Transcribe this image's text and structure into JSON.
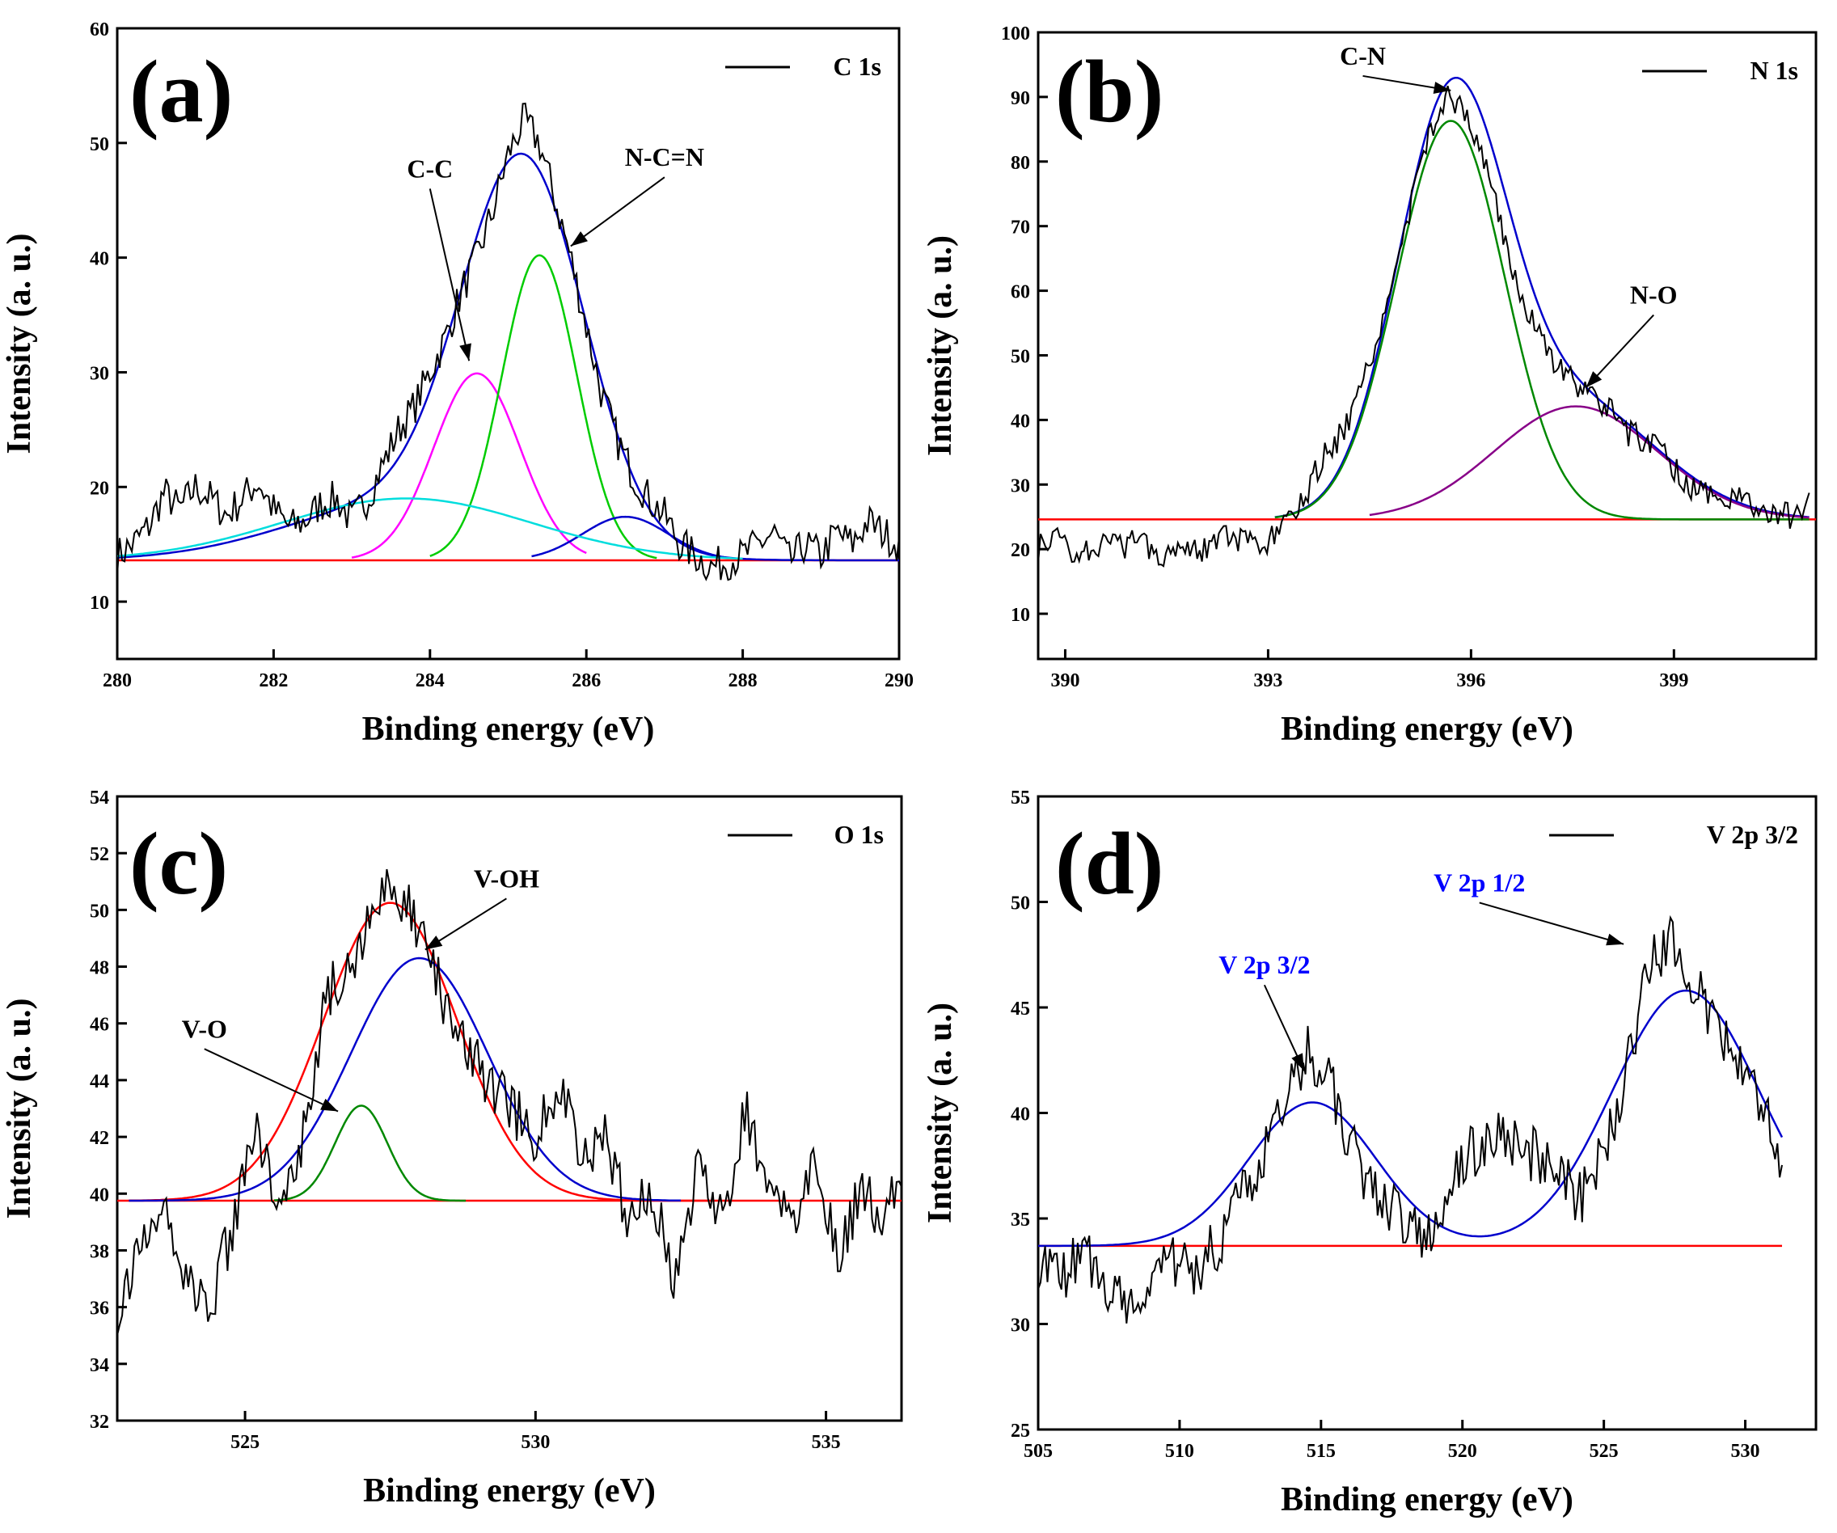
{
  "chart_data": [
    {
      "type": "line",
      "panel_label": "(a)",
      "xlabel": "Binding energy (eV)",
      "ylabel": "Intensity (a. u.)",
      "xlim": [
        280,
        290
      ],
      "ylim": [
        5,
        60
      ],
      "xticks": [
        280,
        282,
        284,
        286,
        288,
        290
      ],
      "yticks": [
        10,
        20,
        30,
        40,
        50,
        60
      ],
      "legend": {
        "label": "C 1s",
        "position": "top-right"
      },
      "baseline": 13.6,
      "raw": {
        "x": [
          280,
          280.2,
          280.4,
          280.6,
          280.8,
          281,
          281.2,
          281.4,
          281.6,
          281.8,
          282,
          282.2,
          282.4,
          282.6,
          282.8,
          283,
          283.2,
          283.4,
          283.6,
          283.8,
          284,
          284.2,
          284.4,
          284.6,
          284.8,
          285,
          285.2,
          285.4,
          285.6,
          285.8,
          286,
          286.2,
          286.4,
          286.6,
          286.8,
          287,
          287.2,
          287.4,
          287.6,
          287.8,
          288,
          288.2,
          288.4,
          288.6,
          288.8,
          289,
          289.2,
          289.4,
          289.6,
          289.8,
          290
        ],
        "y": [
          14,
          15,
          16.5,
          19.5,
          18,
          20,
          19,
          17.5,
          19,
          20.5,
          18,
          16.5,
          17,
          18.5,
          19,
          17,
          19,
          22,
          25,
          27,
          30,
          33,
          37,
          40,
          44,
          49,
          52,
          50,
          45,
          40,
          34,
          28,
          24,
          21,
          19,
          17.5,
          15,
          14,
          13,
          13.5,
          14,
          15,
          16,
          13.5,
          15,
          14,
          16,
          15,
          17,
          16,
          15
        ]
      },
      "fits": [
        {
          "name": "envelope",
          "color": "#0000cc",
          "type": "gauss_sum",
          "components": [
            [
              32.4,
              285.2,
              0.78
            ],
            [
              5,
              283.7,
              1.5
            ]
          ],
          "range": [
            280,
            290
          ]
        },
        {
          "name": "C-C",
          "color": "#ff00ff",
          "type": "gauss",
          "amp": 16.3,
          "center": 284.6,
          "sigma": 0.55,
          "range": [
            283,
            286
          ]
        },
        {
          "name": "N-C=N",
          "color": "#00cc00",
          "type": "gauss",
          "amp": 26.6,
          "center": 285.4,
          "sigma": 0.48,
          "range": [
            284,
            286.9
          ]
        },
        {
          "name": "high-energy",
          "color": "#0000cc",
          "type": "gauss",
          "amp": 3.8,
          "center": 286.5,
          "sigma": 0.55,
          "range": [
            285.3,
            287.8
          ]
        },
        {
          "name": "broad",
          "color": "#00dddd",
          "type": "gauss",
          "amp": 5.4,
          "center": 283.7,
          "sigma": 1.6,
          "range": [
            280,
            288
          ]
        }
      ],
      "annotations": [
        {
          "text": "C-C",
          "color": "#000000",
          "text_xy": [
            284.0,
            47
          ],
          "arrow_to": [
            284.5,
            31
          ]
        },
        {
          "text": "N-C=N",
          "color": "#000000",
          "text_xy": [
            287.0,
            48
          ],
          "arrow_to": [
            285.8,
            41
          ]
        }
      ]
    },
    {
      "type": "line",
      "panel_label": "(b)",
      "xlabel": "Binding energy (eV)",
      "ylabel": "Intensity (a. u.)",
      "xlim": [
        389.6,
        401.1
      ],
      "ylim": [
        3,
        100
      ],
      "xticks": [
        390,
        393,
        396,
        399
      ],
      "yticks": [
        10,
        20,
        30,
        40,
        50,
        60,
        70,
        80,
        90,
        100
      ],
      "legend": {
        "label": "N 1s",
        "position": "top-right"
      },
      "baseline": 24.6,
      "raw": {
        "x": [
          389.6,
          389.9,
          390.2,
          390.5,
          390.8,
          391.1,
          391.4,
          391.7,
          392,
          392.3,
          392.6,
          392.9,
          393.2,
          393.5,
          393.8,
          394.1,
          394.4,
          394.7,
          395,
          395.3,
          395.6,
          395.9,
          396.2,
          396.5,
          396.8,
          397.1,
          397.4,
          397.7,
          398,
          398.3,
          398.6,
          398.9,
          399.2,
          399.5,
          399.8,
          400.1,
          400.4,
          400.7,
          401
        ],
        "y": [
          20,
          22,
          19,
          21,
          20,
          22,
          19,
          21,
          20,
          22,
          21,
          20,
          23,
          27,
          34,
          38,
          45,
          56,
          68,
          82,
          90,
          88,
          80,
          68,
          57,
          51,
          47,
          44,
          42,
          38,
          37,
          34,
          30,
          29,
          28,
          27,
          26,
          25,
          27
        ]
      },
      "fits": [
        {
          "name": "envelope",
          "color": "#0000cc",
          "type": "gauss_sum",
          "components": [
            [
              61.7,
              395.7,
              0.8
            ],
            [
              18,
              397.5,
              1.25
            ]
          ],
          "range": [
            393.1,
            401
          ]
        },
        {
          "name": "C-N",
          "color": "#008800",
          "type": "gauss",
          "amp": 61.7,
          "center": 395.7,
          "sigma": 0.8,
          "range": [
            393.1,
            401
          ]
        },
        {
          "name": "N-O",
          "color": "#880088",
          "type": "gauss",
          "amp": 17.5,
          "center": 397.55,
          "sigma": 1.2,
          "range": [
            394.5,
            401
          ]
        }
      ],
      "annotations": [
        {
          "text": "C-N",
          "color": "#000000",
          "text_xy": [
            394.4,
            95
          ],
          "arrow_to": [
            395.7,
            91
          ]
        },
        {
          "text": "N-O",
          "color": "#000000",
          "text_xy": [
            398.7,
            58
          ],
          "arrow_to": [
            397.7,
            45
          ]
        }
      ]
    },
    {
      "type": "line",
      "panel_label": "(c)",
      "xlabel": "Binding energy (eV)",
      "ylabel": "Intensity (a. u.)",
      "xlim": [
        522.8,
        536.3
      ],
      "ylim": [
        32,
        54
      ],
      "xticks": [
        525,
        530,
        535
      ],
      "yticks": [
        32,
        34,
        36,
        38,
        40,
        42,
        44,
        46,
        48,
        50,
        52,
        54
      ],
      "legend": {
        "label": "O 1s",
        "position": "top-right"
      },
      "baseline": 39.75,
      "raw": {
        "x": [
          522.8,
          523.2,
          523.6,
          524,
          524.4,
          524.8,
          525.2,
          525.6,
          526,
          526.4,
          526.8,
          527.2,
          527.6,
          528,
          528.4,
          528.8,
          529.2,
          529.6,
          530,
          530.4,
          530.8,
          531.2,
          531.6,
          532,
          532.4,
          532.8,
          533.2,
          533.6,
          534,
          534.4,
          534.8,
          535.2,
          535.6,
          536,
          536.3
        ],
        "y": [
          36,
          38,
          39.5,
          37,
          36,
          39,
          42,
          40,
          42,
          47,
          48,
          50,
          51,
          49,
          47,
          45,
          44,
          43,
          42,
          44,
          41,
          42,
          39,
          40,
          37,
          41,
          39,
          43,
          40,
          39,
          41,
          38,
          40,
          39,
          41
        ]
      },
      "fits": [
        {
          "name": "envelope",
          "color": "#ff0000",
          "type": "gauss",
          "amp": 10.5,
          "center": 527.5,
          "sigma": 1.15,
          "range": [
            523,
            533
          ]
        },
        {
          "name": "V-OH",
          "color": "#0000cc",
          "type": "gauss",
          "amp": 8.55,
          "center": 528.0,
          "sigma": 1.18,
          "range": [
            523,
            532.5
          ]
        },
        {
          "name": "V-O",
          "color": "#008800",
          "type": "gauss",
          "amp": 3.35,
          "center": 527.0,
          "sigma": 0.45,
          "range": [
            525.5,
            528.8
          ]
        }
      ],
      "annotations": [
        {
          "text": "V-O",
          "color": "#000000",
          "text_xy": [
            524.3,
            45.5
          ],
          "arrow_to": [
            526.6,
            42.9
          ]
        },
        {
          "text": "V-OH",
          "color": "#000000",
          "text_xy": [
            529.5,
            50.8
          ],
          "arrow_to": [
            528.1,
            48.6
          ]
        }
      ]
    },
    {
      "type": "line",
      "panel_label": "(d)",
      "xlabel": "Binding energy (eV)",
      "ylabel": "Intensity (a. u.)",
      "xlim": [
        505,
        532.5
      ],
      "ylim": [
        25,
        55
      ],
      "xticks": [
        505,
        510,
        515,
        520,
        525,
        530
      ],
      "yticks": [
        25,
        30,
        35,
        40,
        45,
        50,
        55
      ],
      "legend": {
        "label": "V 2p 3/2",
        "position": "top-right"
      },
      "baseline": 33.7,
      "raw": {
        "x": [
          505,
          505.8,
          506.6,
          507.4,
          508.2,
          509,
          509.8,
          510.6,
          511.4,
          512.2,
          513,
          513.8,
          514.6,
          515.4,
          516.2,
          517,
          517.8,
          518.6,
          519.4,
          520.2,
          521,
          521.8,
          522.6,
          523.4,
          524.2,
          525,
          525.8,
          526.6,
          527.4,
          528.2,
          529,
          529.8,
          530.6,
          531.3
        ],
        "y": [
          33,
          32,
          33.5,
          32,
          31,
          32,
          33,
          32.5,
          34,
          36,
          38,
          41,
          43,
          41,
          38,
          36,
          35,
          34,
          36,
          38,
          39,
          38.5,
          38,
          37,
          36,
          38,
          42,
          47,
          48,
          46,
          44,
          42,
          40,
          38
        ]
      },
      "fits": [
        {
          "name": "envelope",
          "color": "#0000cc",
          "type": "gauss_sum",
          "components": [
            [
              6.8,
              514.7,
              2.25
            ],
            [
              12.1,
              527.9,
              2.6
            ]
          ],
          "range": [
            505,
            531.3
          ]
        },
        {
          "name": "baseline",
          "color": "#ff0000",
          "type": "flat",
          "range": [
            505,
            531.3
          ]
        }
      ],
      "annotations": [
        {
          "text": "V 2p 3/2",
          "color": "#0000ff",
          "text_xy": [
            513.0,
            46.6
          ],
          "arrow_to": [
            514.4,
            42.0
          ]
        },
        {
          "text": "V 2p 1/2",
          "color": "#0000ff",
          "text_xy": [
            520.6,
            50.5
          ],
          "arrow_to": [
            525.7,
            48.0
          ]
        }
      ]
    }
  ]
}
